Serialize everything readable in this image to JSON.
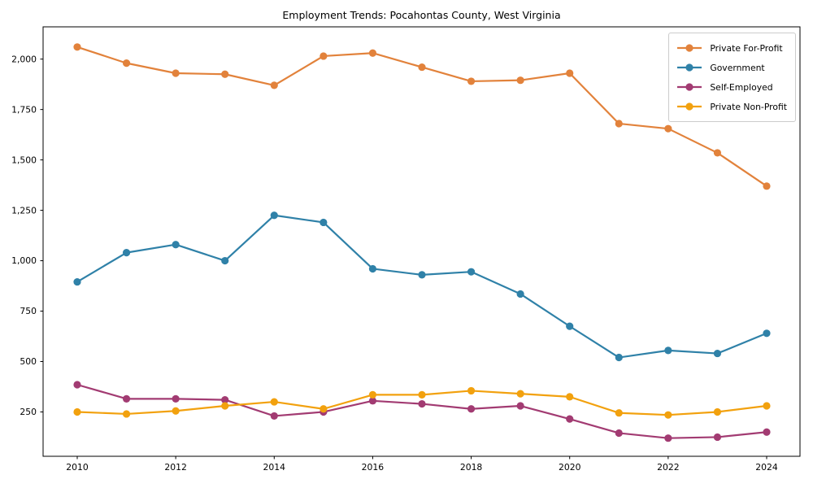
{
  "chart_data": {
    "type": "line",
    "title": "Employment Trends: Pocahontas County, West Virginia",
    "xlabel": "",
    "ylabel": "",
    "x": [
      2010,
      2011,
      2012,
      2013,
      2014,
      2015,
      2016,
      2017,
      2018,
      2019,
      2020,
      2021,
      2022,
      2023,
      2024
    ],
    "series": [
      {
        "name": "Private For-Profit",
        "color": "#e2823b",
        "values": [
          2060,
          1980,
          1930,
          1925,
          1870,
          2015,
          2030,
          1960,
          1890,
          1895,
          1930,
          1680,
          1655,
          1535,
          1370
        ]
      },
      {
        "name": "Government",
        "color": "#2f81a8",
        "values": [
          895,
          1040,
          1080,
          1000,
          1225,
          1190,
          960,
          930,
          945,
          835,
          675,
          520,
          555,
          540,
          640
        ]
      },
      {
        "name": "Self-Employed",
        "color": "#a23b72",
        "values": [
          385,
          315,
          315,
          310,
          230,
          250,
          305,
          290,
          265,
          280,
          215,
          145,
          120,
          125,
          150
        ]
      },
      {
        "name": "Private Non-Profit",
        "color": "#f2a10e",
        "values": [
          250,
          240,
          255,
          280,
          300,
          265,
          335,
          335,
          355,
          340,
          325,
          245,
          235,
          250,
          280
        ]
      }
    ],
    "xticks": [
      2010,
      2012,
      2014,
      2016,
      2018,
      2020,
      2022,
      2024
    ],
    "yticks": [
      250,
      500,
      750,
      1000,
      1250,
      1500,
      1750,
      2000
    ],
    "ytick_labels": [
      "250",
      "500",
      "750",
      "1,000",
      "1,250",
      "1,500",
      "1,750",
      "2,000"
    ],
    "ylim": [
      30,
      2160
    ],
    "grid": false,
    "legend_position": "upper right",
    "axis_color": "#000000"
  }
}
